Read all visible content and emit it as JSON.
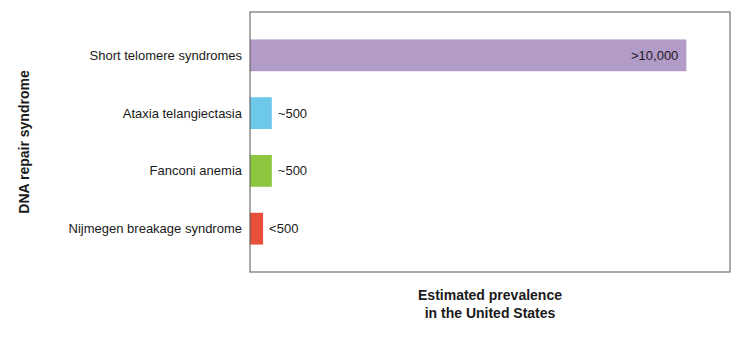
{
  "chart_data": {
    "type": "bar",
    "orientation": "horizontal",
    "categories": [
      "Nijmegen breakage syndrome",
      "Fanconi anemia",
      "Ataxia telangiectasia",
      "Short telomere syndromes"
    ],
    "values": [
      300,
      500,
      500,
      10000
    ],
    "value_labels": [
      "<500",
      "~500",
      "~500",
      ">10,000"
    ],
    "colors": [
      "#e8503a",
      "#8dc63f",
      "#6dc8e9",
      "#b39bc8"
    ],
    "xlabel": "Estimated prevalence\nin the United States",
    "ylabel": "DNA repair syndrome",
    "xlim": [
      0,
      11000
    ],
    "xticks": [],
    "grid": false,
    "data_labels": true,
    "tick_labels": "y"
  }
}
